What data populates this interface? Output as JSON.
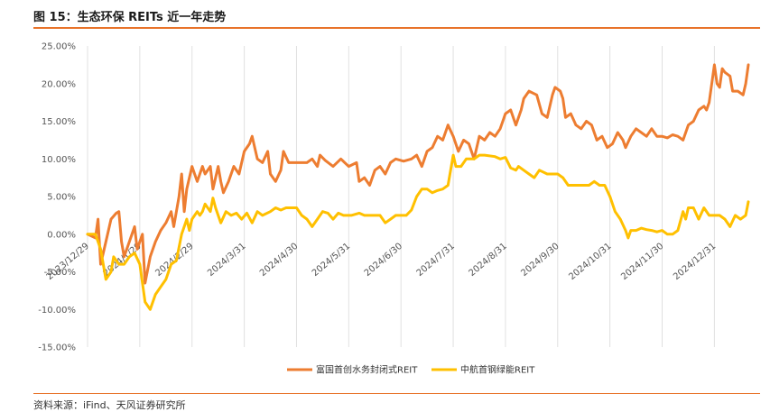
{
  "title": "图 15：生态环保 REITs 近一年走势",
  "source": "资料来源：iFind、天风证券研究所",
  "colors": {
    "orange": "#ED7D31",
    "yellow": "#FFC000",
    "accent": "#E8732A"
  },
  "chart_data": {
    "type": "line",
    "ylim": [
      -15,
      25
    ],
    "yticks": [
      "-15.00%",
      "-10.00%",
      "-5.00%",
      "0.00%",
      "5.00%",
      "10.00%",
      "15.00%",
      "20.00%",
      "25.00%"
    ],
    "ytick_values": [
      -15,
      -10,
      -5,
      0,
      5,
      10,
      15,
      20,
      25
    ],
    "xticks": [
      "2023/12/29",
      "2024/1/29",
      "2024/2/29",
      "2024/3/31",
      "2024/4/30",
      "2024/5/31",
      "2024/6/30",
      "2024/7/31",
      "2024/8/31",
      "2024/9/30",
      "2024/10/31",
      "2024/11/30",
      "2024/12/31"
    ],
    "xtick_index": [
      0,
      20,
      40,
      60,
      80,
      100,
      120,
      140,
      160,
      180,
      200,
      220,
      240
    ],
    "grid": "vertical",
    "legend_position": "bottom",
    "series": [
      {
        "name": "富国首创水务封闭式REIT",
        "color": "#ED7D31",
        "points": [
          [
            0,
            0
          ],
          [
            3,
            -0.5
          ],
          [
            4,
            2
          ],
          [
            5,
            -4
          ],
          [
            7,
            -1
          ],
          [
            9,
            2
          ],
          [
            11,
            2.8
          ],
          [
            12,
            3
          ],
          [
            13,
            -1
          ],
          [
            14,
            -3
          ],
          [
            16,
            -1
          ],
          [
            18,
            1
          ],
          [
            19,
            -2
          ],
          [
            21,
            0
          ],
          [
            22,
            -6.5
          ],
          [
            24,
            -3
          ],
          [
            26,
            -1
          ],
          [
            28,
            0.5
          ],
          [
            30,
            1.5
          ],
          [
            32,
            3
          ],
          [
            33,
            1
          ],
          [
            35,
            5
          ],
          [
            36,
            8
          ],
          [
            37,
            3
          ],
          [
            38,
            6
          ],
          [
            40,
            9
          ],
          [
            41,
            8
          ],
          [
            42,
            7
          ],
          [
            44,
            9
          ],
          [
            45,
            8
          ],
          [
            47,
            9
          ],
          [
            48,
            6
          ],
          [
            50,
            9
          ],
          [
            51,
            7
          ],
          [
            52,
            5.5
          ],
          [
            54,
            7
          ],
          [
            56,
            9
          ],
          [
            58,
            8
          ],
          [
            60,
            11
          ],
          [
            62,
            12
          ],
          [
            63,
            13
          ],
          [
            65,
            10
          ],
          [
            67,
            9.5
          ],
          [
            69,
            11
          ],
          [
            70,
            8
          ],
          [
            72,
            7
          ],
          [
            74,
            8.5
          ],
          [
            75,
            11
          ],
          [
            77,
            9.5
          ],
          [
            80,
            9.5
          ],
          [
            84,
            9.5
          ],
          [
            86,
            10
          ],
          [
            88,
            9
          ],
          [
            89,
            10.5
          ],
          [
            91,
            9.8
          ],
          [
            94,
            9
          ],
          [
            97,
            10
          ],
          [
            100,
            9
          ],
          [
            103,
            9.5
          ],
          [
            104,
            7
          ],
          [
            106,
            7.5
          ],
          [
            108,
            6.5
          ],
          [
            110,
            8.5
          ],
          [
            112,
            9
          ],
          [
            114,
            8
          ],
          [
            116,
            9.5
          ],
          [
            118,
            10
          ],
          [
            121,
            9.7
          ],
          [
            124,
            10
          ],
          [
            126,
            10.5
          ],
          [
            128,
            9
          ],
          [
            130,
            11
          ],
          [
            132,
            11.5
          ],
          [
            134,
            13
          ],
          [
            136,
            12.5
          ],
          [
            138,
            14.5
          ],
          [
            140,
            13
          ],
          [
            142,
            11
          ],
          [
            144,
            12.5
          ],
          [
            146,
            12
          ],
          [
            148,
            10
          ],
          [
            150,
            13
          ],
          [
            152,
            12.5
          ],
          [
            154,
            13.5
          ],
          [
            156,
            13
          ],
          [
            158,
            14
          ],
          [
            159,
            15
          ],
          [
            160,
            16
          ],
          [
            162,
            16.5
          ],
          [
            164,
            14.5
          ],
          [
            166,
            16.5
          ],
          [
            167,
            18
          ],
          [
            169,
            19
          ],
          [
            172,
            18.5
          ],
          [
            174,
            16
          ],
          [
            176,
            15.5
          ],
          [
            178,
            18.5
          ],
          [
            179,
            19.5
          ],
          [
            181,
            19
          ],
          [
            182,
            18
          ],
          [
            183,
            15.5
          ],
          [
            185,
            16
          ],
          [
            187,
            14.5
          ],
          [
            189,
            14
          ],
          [
            191,
            15
          ],
          [
            193,
            14.5
          ],
          [
            195,
            12.5
          ],
          [
            197,
            13
          ],
          [
            199,
            11.5
          ],
          [
            201,
            12
          ],
          [
            203,
            13.5
          ],
          [
            205,
            12.5
          ],
          [
            206,
            11.5
          ],
          [
            208,
            13
          ],
          [
            210,
            14
          ],
          [
            212,
            13.5
          ],
          [
            214,
            13
          ],
          [
            216,
            14
          ],
          [
            218,
            13
          ],
          [
            220,
            13
          ],
          [
            222,
            12.8
          ],
          [
            224,
            13.2
          ],
          [
            226,
            13
          ],
          [
            228,
            12.5
          ],
          [
            230,
            14.5
          ],
          [
            232,
            15
          ],
          [
            234,
            16.5
          ],
          [
            236,
            17
          ],
          [
            237,
            16.5
          ],
          [
            238,
            17.5
          ],
          [
            240,
            22.5
          ],
          [
            241,
            20
          ],
          [
            242,
            19.5
          ],
          [
            243,
            22
          ],
          [
            244,
            21.5
          ],
          [
            246,
            21
          ],
          [
            247,
            19
          ],
          [
            249,
            19
          ],
          [
            251,
            18.5
          ],
          [
            252,
            20
          ],
          [
            253,
            22.5
          ]
        ]
      },
      {
        "name": "中航首钢绿能REIT",
        "color": "#FFC000",
        "points": [
          [
            0,
            0
          ],
          [
            3,
            0
          ],
          [
            5,
            -2
          ],
          [
            7,
            -6
          ],
          [
            9,
            -5
          ],
          [
            10,
            -3
          ],
          [
            12,
            -4
          ],
          [
            14,
            -4
          ],
          [
            16,
            -3
          ],
          [
            18,
            -2.5
          ],
          [
            20,
            -4
          ],
          [
            22,
            -9
          ],
          [
            24,
            -10
          ],
          [
            26,
            -8
          ],
          [
            28,
            -7
          ],
          [
            30,
            -6
          ],
          [
            32,
            -4
          ],
          [
            34,
            -3.5
          ],
          [
            36,
            0
          ],
          [
            37,
            1
          ],
          [
            38,
            2
          ],
          [
            39,
            0.5
          ],
          [
            40,
            2
          ],
          [
            42,
            3
          ],
          [
            43,
            2.5
          ],
          [
            44,
            3
          ],
          [
            45,
            4
          ],
          [
            47,
            3
          ],
          [
            48,
            4.8
          ],
          [
            49,
            3.5
          ],
          [
            51,
            1.5
          ],
          [
            53,
            3
          ],
          [
            55,
            2.5
          ],
          [
            57,
            2.8
          ],
          [
            59,
            2
          ],
          [
            61,
            2.8
          ],
          [
            63,
            1.5
          ],
          [
            65,
            3
          ],
          [
            67,
            2.5
          ],
          [
            70,
            3
          ],
          [
            72,
            3.5
          ],
          [
            74,
            3.2
          ],
          [
            76,
            3.5
          ],
          [
            78,
            3.5
          ],
          [
            80,
            3.5
          ],
          [
            82,
            2.5
          ],
          [
            84,
            2
          ],
          [
            86,
            1
          ],
          [
            88,
            2
          ],
          [
            90,
            3
          ],
          [
            92,
            2.8
          ],
          [
            94,
            2
          ],
          [
            96,
            2.8
          ],
          [
            98,
            2.5
          ],
          [
            101,
            2.5
          ],
          [
            104,
            2.8
          ],
          [
            106,
            2.5
          ],
          [
            108,
            2.5
          ],
          [
            110,
            2.5
          ],
          [
            112,
            2.5
          ],
          [
            114,
            1.5
          ],
          [
            116,
            2
          ],
          [
            118,
            2.5
          ],
          [
            120,
            2.5
          ],
          [
            122,
            2.5
          ],
          [
            124,
            3.2
          ],
          [
            126,
            5
          ],
          [
            128,
            6
          ],
          [
            130,
            6
          ],
          [
            132,
            5.5
          ],
          [
            134,
            5.8
          ],
          [
            136,
            6
          ],
          [
            138,
            6.5
          ],
          [
            140,
            10.5
          ],
          [
            141,
            9
          ],
          [
            143,
            9
          ],
          [
            145,
            10
          ],
          [
            148,
            10
          ],
          [
            150,
            10.5
          ],
          [
            152,
            10.5
          ],
          [
            156,
            10.3
          ],
          [
            158,
            10
          ],
          [
            160,
            10.2
          ],
          [
            161,
            9.5
          ],
          [
            162,
            8.8
          ],
          [
            164,
            8.5
          ],
          [
            165,
            9
          ],
          [
            167,
            8.5
          ],
          [
            169,
            8
          ],
          [
            171,
            7.5
          ],
          [
            173,
            8.5
          ],
          [
            176,
            8
          ],
          [
            178,
            8
          ],
          [
            180,
            8
          ],
          [
            182,
            7.5
          ],
          [
            184,
            6.5
          ],
          [
            187,
            6.5
          ],
          [
            190,
            6.5
          ],
          [
            192,
            6.5
          ],
          [
            194,
            7
          ],
          [
            196,
            6.5
          ],
          [
            198,
            6.5
          ],
          [
            200,
            5
          ],
          [
            202,
            3
          ],
          [
            204,
            2
          ],
          [
            206,
            0.5
          ],
          [
            207,
            -0.5
          ],
          [
            208,
            0.5
          ],
          [
            210,
            0.5
          ],
          [
            212,
            0.8
          ],
          [
            214,
            0.6
          ],
          [
            216,
            0.5
          ],
          [
            218,
            0.3
          ],
          [
            220,
            0.5
          ],
          [
            222,
            0
          ],
          [
            224,
            0
          ],
          [
            226,
            0.5
          ],
          [
            228,
            3
          ],
          [
            229,
            2
          ],
          [
            230,
            3.5
          ],
          [
            232,
            3.5
          ],
          [
            234,
            2
          ],
          [
            236,
            3.5
          ],
          [
            238,
            2.5
          ],
          [
            240,
            2.5
          ],
          [
            242,
            2.5
          ],
          [
            244,
            2
          ],
          [
            246,
            1
          ],
          [
            248,
            2.5
          ],
          [
            250,
            2
          ],
          [
            252,
            2.5
          ],
          [
            253,
            4.3
          ]
        ]
      }
    ]
  }
}
